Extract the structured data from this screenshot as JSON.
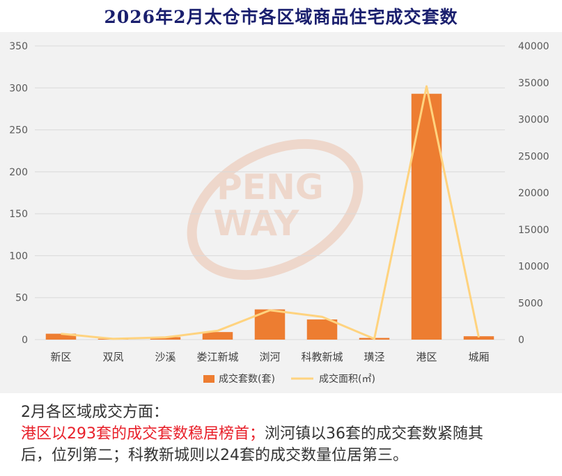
{
  "title": "2026年2月太仓市各区域商品住宅成交套数",
  "watermark": {
    "line1": "PENG",
    "line2": "WAY",
    "color": "#e8a07a"
  },
  "chart_data": {
    "type": "bar",
    "categories": [
      "新区",
      "双凤",
      "沙溪",
      "娄江新城",
      "浏河",
      "科教新城",
      "璜泾",
      "港区",
      "城厢"
    ],
    "series": [
      {
        "name": "成交套数(套)",
        "type": "bar",
        "axis": "left",
        "color": "#ed7d31",
        "values": [
          7,
          1,
          3,
          9,
          36,
          24,
          2,
          293,
          4
        ]
      },
      {
        "name": "成交面积(㎡)",
        "type": "line",
        "axis": "right",
        "color": "#ffd37f",
        "values": [
          800,
          100,
          300,
          1200,
          4000,
          3100,
          100,
          34500,
          300
        ]
      }
    ],
    "ylim_left": [
      0,
      350
    ],
    "yticks_left": [
      "0",
      "50",
      "100",
      "150",
      "200",
      "250",
      "300",
      "350"
    ],
    "ylim_right": [
      0,
      40000
    ],
    "yticks_right": [
      "0",
      "5000",
      "10000",
      "15000",
      "20000",
      "25000",
      "30000",
      "35000",
      "40000"
    ],
    "grid": true,
    "legend_position": "bottom"
  },
  "caption": {
    "line1": "2月各区域成交方面：",
    "line2_highlight": "港区以293套的成交套数稳居榜首；",
    "line2_rest": "浏河镇以36套的成交套数紧随其",
    "line3": "后，位列第二；科教新城则以24套的成交数量位居第三。"
  }
}
